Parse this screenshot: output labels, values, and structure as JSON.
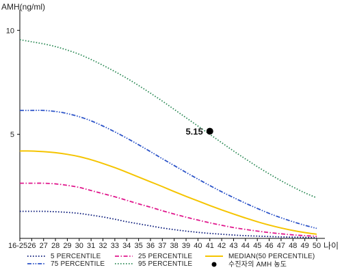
{
  "chart_data": {
    "type": "line",
    "ylabel": "AMH(ng/ml)",
    "xlabel": "나이",
    "categories": [
      "16-25",
      "26",
      "27",
      "28",
      "29",
      "30",
      "31",
      "32",
      "33",
      "34",
      "35",
      "36",
      "37",
      "38",
      "39",
      "40",
      "41",
      "42",
      "43",
      "44",
      "45",
      "46",
      "47",
      "48",
      "49",
      "50"
    ],
    "ylim": [
      0,
      10.8
    ],
    "yticks": [
      5,
      10
    ],
    "series": [
      {
        "name": "5 PERCENTILE",
        "color": "#0a1a7a",
        "dash": "dotted",
        "values": [
          1.3,
          1.3,
          1.3,
          1.28,
          1.25,
          1.2,
          1.12,
          1.03,
          0.92,
          0.8,
          0.7,
          0.6,
          0.5,
          0.42,
          0.35,
          0.29,
          0.24,
          0.2,
          0.16,
          0.13,
          0.11,
          0.09,
          0.07,
          0.06,
          0.05,
          0.04
        ]
      },
      {
        "name": "25 PERCENTILE",
        "color": "#e0168c",
        "dash": "dashdot",
        "values": [
          2.65,
          2.65,
          2.65,
          2.62,
          2.55,
          2.45,
          2.3,
          2.15,
          2.0,
          1.83,
          1.66,
          1.5,
          1.33,
          1.17,
          1.02,
          0.88,
          0.75,
          0.63,
          0.52,
          0.43,
          0.35,
          0.28,
          0.22,
          0.17,
          0.13,
          0.1
        ]
      },
      {
        "name": "MEDIAN(50 PERCENTILE)",
        "color": "#f5c400",
        "dash": "solid",
        "values": [
          4.2,
          4.2,
          4.17,
          4.12,
          4.04,
          3.93,
          3.78,
          3.6,
          3.4,
          3.18,
          2.95,
          2.72,
          2.49,
          2.25,
          2.02,
          1.8,
          1.58,
          1.37,
          1.17,
          0.98,
          0.8,
          0.64,
          0.5,
          0.38,
          0.28,
          0.2
        ]
      },
      {
        "name": "75 PERCENTILE",
        "color": "#2a52c8",
        "dash": "dashdotdot",
        "values": [
          6.15,
          6.15,
          6.15,
          6.1,
          6.0,
          5.85,
          5.65,
          5.4,
          5.12,
          4.82,
          4.5,
          4.17,
          3.83,
          3.5,
          3.17,
          2.85,
          2.54,
          2.24,
          1.96,
          1.69,
          1.44,
          1.2,
          0.99,
          0.8,
          0.63,
          0.48
        ]
      },
      {
        "name": "95 PERCENTILE",
        "color": "#2e8b57",
        "dash": "dotted",
        "values": [
          9.55,
          9.45,
          9.35,
          9.22,
          9.05,
          8.85,
          8.6,
          8.32,
          8.02,
          7.7,
          7.35,
          6.98,
          6.6,
          6.2,
          5.8,
          5.4,
          5.0,
          4.6,
          4.2,
          3.82,
          3.45,
          3.1,
          2.77,
          2.47,
          2.19,
          1.95
        ]
      }
    ],
    "highlight": {
      "name": "수진자의 AMH 농도",
      "x": "41",
      "y": 5.15,
      "label": "5.15",
      "color": "#000000"
    },
    "legend_position": "bottom",
    "grid": false
  }
}
